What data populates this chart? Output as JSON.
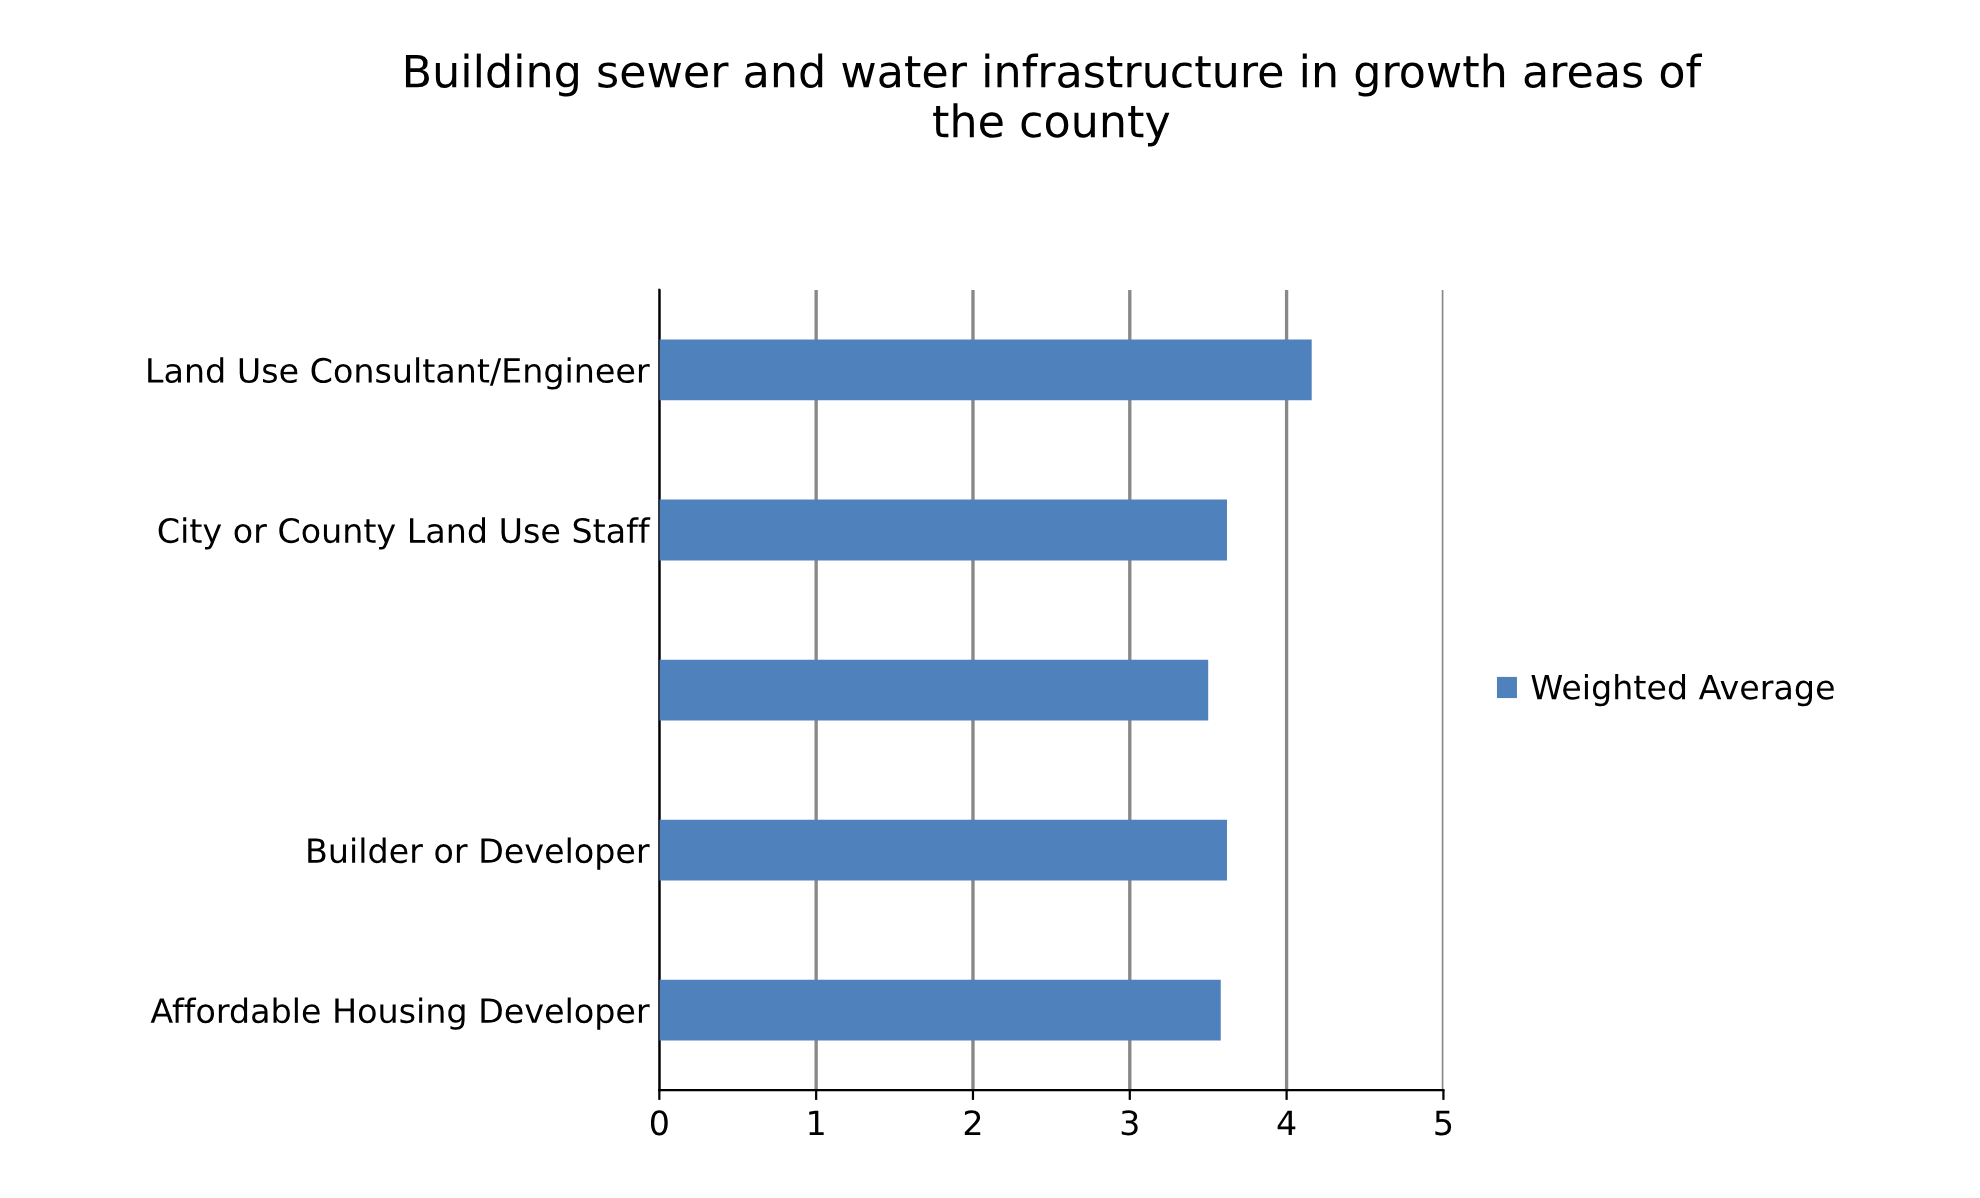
{
  "chart_data": {
    "type": "bar",
    "orientation": "horizontal",
    "title": "Building sewer and water infrastructure in growth areas of\nthe county",
    "categories": [
      "Land Use Consultant/Engineer",
      "City or County Land Use Staff",
      null,
      "Builder or Developer",
      "Affordable Housing Developer"
    ],
    "series": [
      {
        "name": "Weighted Average",
        "color": "#4f81bd",
        "values": [
          4.16,
          3.62,
          3.5,
          3.62,
          3.58
        ]
      }
    ],
    "xlim": [
      0,
      5
    ],
    "xticks": [
      0,
      1,
      2,
      3,
      4,
      5
    ],
    "grid": "x",
    "legend": "right"
  }
}
